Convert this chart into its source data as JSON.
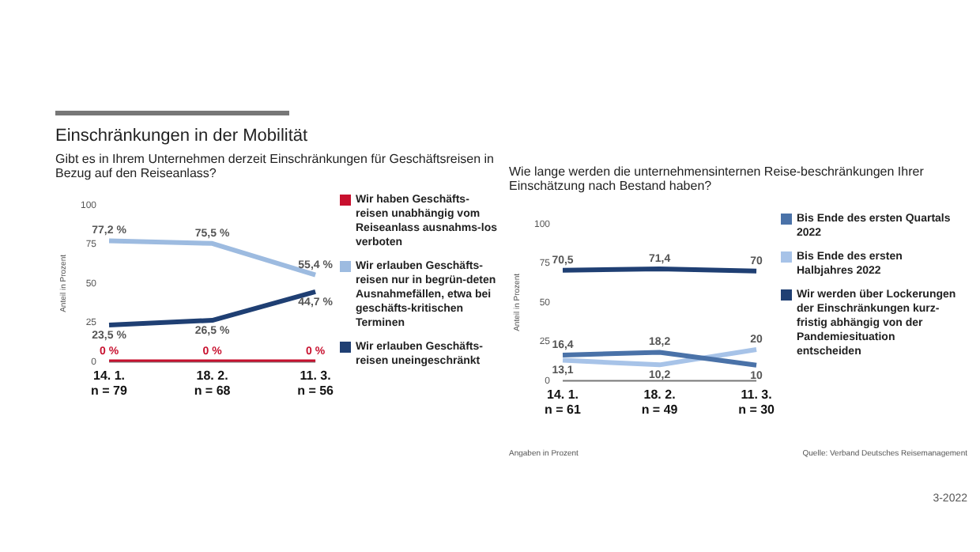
{
  "chart_data": [
    {
      "type": "line",
      "title": "Einschränkungen in der Mobilität",
      "subtitle": "Gibt es in Ihrem Unternehmen derzeit Einschränkungen für Geschäftsreisen in Bezug auf den Reiseanlass?",
      "ylabel": "Anteil in Prozent",
      "categories": [
        "14. 1.\nn = 79",
        "18. 2.\nn = 68",
        "11. 3.\nn = 56"
      ],
      "series": [
        {
          "name": "Wir haben Geschäfts-reisen unabhängig vom Reiseanlass ausnahms-los verboten",
          "color": "#c8102e",
          "values": [
            0,
            0,
            0
          ],
          "value_labels": [
            "0 %",
            "0 %",
            "0 %"
          ]
        },
        {
          "name": "Wir erlauben Geschäfts-reisen nur in begrün-deten Ausnahmefällen, etwa bei geschäfts-kritischen Terminen",
          "color": "#9dbbe0",
          "values": [
            77.2,
            75.5,
            55.4
          ],
          "value_labels": [
            "77,2 %",
            "75,5 %",
            "55,4 %"
          ]
        },
        {
          "name": "Wir erlauben Geschäfts-reisen uneingeschränkt",
          "color": "#1f3f73",
          "values": [
            23.5,
            26.5,
            44.7
          ],
          "value_labels": [
            "23,5 %",
            "26,5 %",
            "44,7 %"
          ]
        }
      ],
      "ylim": [
        0,
        100
      ],
      "yticks": [
        0,
        25,
        50,
        75,
        100
      ],
      "grid": false,
      "legend": "right",
      "marker": "none"
    },
    {
      "type": "line",
      "title": "Wie lange werden die unternehmensinternen Reise-beschränkungen Ihrer Einschätzung nach Bestand haben?",
      "ylabel": "Anteil in Prozent",
      "categories": [
        "14. 1.\nn = 61",
        "18. 2.\nn = 49",
        "11. 3.\nn = 30"
      ],
      "series": [
        {
          "name": "Bis Ende des ersten Quartals 2022",
          "color": "#4a72a8",
          "values": [
            16.4,
            18.2,
            10
          ],
          "value_labels": [
            "16,4",
            "18,2",
            "10"
          ]
        },
        {
          "name": "Bis Ende des ersten Halbjahres 2022",
          "color": "#a7c3e8",
          "values": [
            13.1,
            10.2,
            20
          ],
          "value_labels": [
            "13,1",
            "10,2",
            "20"
          ]
        },
        {
          "name": "Wir werden über Lockerungen der Einschränkungen kurz-fristig abhängig von der Pandemiesituation entscheiden",
          "color": "#1f3f73",
          "values": [
            70.5,
            71.4,
            70
          ],
          "value_labels": [
            "70,5",
            "71,4",
            "70"
          ]
        }
      ],
      "ylim": [
        0,
        100
      ],
      "yticks": [
        0,
        25,
        50,
        75,
        100
      ],
      "grid": false,
      "legend": "right",
      "marker": "none",
      "annotations": [
        "Angaben in Prozent",
        "Quelle: Verband Deutsches Reisemanagement",
        "3-2022"
      ]
    }
  ]
}
